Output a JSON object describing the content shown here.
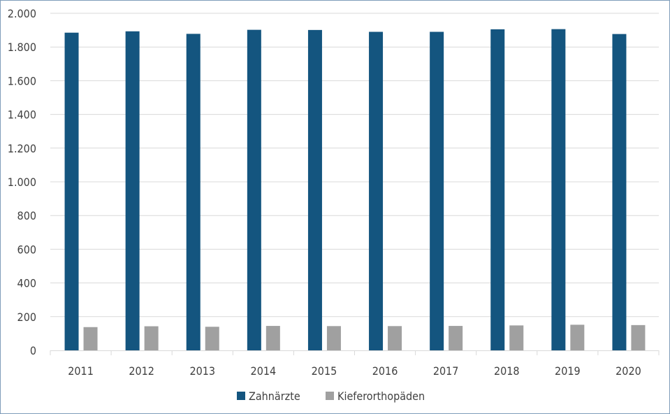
{
  "chart_data": {
    "type": "bar",
    "title": "",
    "xlabel": "",
    "ylabel": "",
    "categories": [
      "2011",
      "2012",
      "2013",
      "2014",
      "2015",
      "2016",
      "2017",
      "2018",
      "2019",
      "2020"
    ],
    "series": [
      {
        "name": "Zahnärzte",
        "color": "#14557f",
        "values": [
          1885,
          1893,
          1878,
          1902,
          1901,
          1890,
          1890,
          1905,
          1906,
          1877
        ]
      },
      {
        "name": "Kieferorthopäden",
        "color": "#a0a0a0",
        "values": [
          138,
          143,
          140,
          145,
          144,
          144,
          145,
          148,
          152,
          150
        ]
      }
    ],
    "ylim": [
      0,
      2000
    ],
    "yticks": [
      0,
      200,
      400,
      600,
      800,
      1000,
      1200,
      1400,
      1600,
      1800,
      2000
    ],
    "ytick_labels": [
      "0",
      "200",
      "400",
      "600",
      "800",
      "1.000",
      "1.200",
      "1.400",
      "1.600",
      "1.800",
      "2.000"
    ],
    "grid": "horizontal",
    "legend_position": "bottom"
  }
}
